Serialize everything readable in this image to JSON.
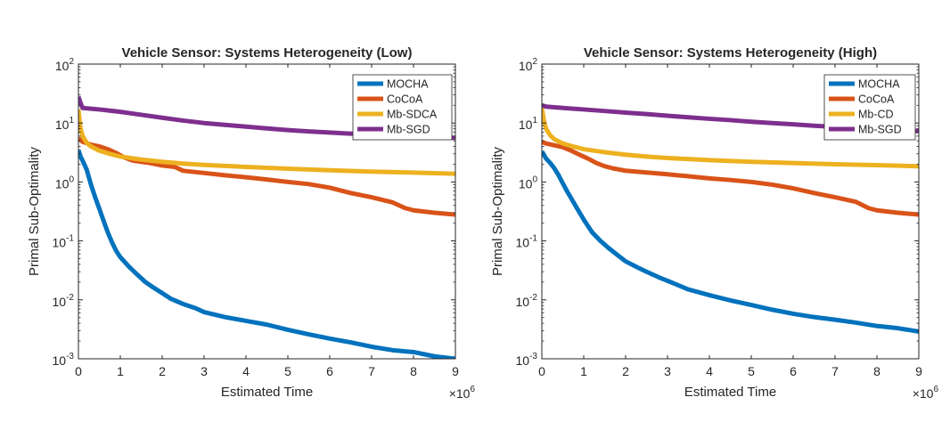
{
  "chart_data": [
    {
      "type": "line",
      "title": "Vehicle Sensor: Systems Heterogeneity (Low)",
      "xlabel": "Estimated Time",
      "ylabel": "Primal Sub-Optimality",
      "x_exponent_label": "×10",
      "x_exponent": "6",
      "y_scale": "log",
      "xlim": [
        0,
        9
      ],
      "ylim": [
        0.001,
        100
      ],
      "x_ticks": [
        "0",
        "1",
        "2",
        "3",
        "4",
        "5",
        "6",
        "7",
        "8",
        "9"
      ],
      "y_ticks": [
        {
          "base": "10",
          "exp": "-3"
        },
        {
          "base": "10",
          "exp": "-2"
        },
        {
          "base": "10",
          "exp": "-1"
        },
        {
          "base": "10",
          "exp": "0"
        },
        {
          "base": "10",
          "exp": "1"
        },
        {
          "base": "10",
          "exp": "2"
        }
      ],
      "legend_position": "top-right",
      "grid": false,
      "series": [
        {
          "name": "MOCHA",
          "color": "#0072BD",
          "x": [
            0,
            0.05,
            0.1,
            0.2,
            0.3,
            0.4,
            0.5,
            0.6,
            0.7,
            0.8,
            0.9,
            1.0,
            1.2,
            1.4,
            1.6,
            1.8,
            2.0,
            2.2,
            2.5,
            2.8,
            3.0,
            3.5,
            4.0,
            4.5,
            5.0,
            5.5,
            6.0,
            6.5,
            7.0,
            7.5,
            8.0,
            8.5,
            9.0
          ],
          "y": [
            3.5,
            2.7,
            2.3,
            1.6,
            0.9,
            0.55,
            0.35,
            0.22,
            0.14,
            0.095,
            0.068,
            0.053,
            0.037,
            0.027,
            0.02,
            0.016,
            0.013,
            0.0105,
            0.0085,
            0.0072,
            0.0062,
            0.0051,
            0.0044,
            0.0038,
            0.0031,
            0.0026,
            0.0022,
            0.0019,
            0.0016,
            0.0014,
            0.0013,
            0.0011,
            0.001
          ]
        },
        {
          "name": "CoCoA",
          "color": "#D95319",
          "x": [
            0,
            0.1,
            0.3,
            0.5,
            0.7,
            0.9,
            1.1,
            1.3,
            1.5,
            1.7,
            2.0,
            2.3,
            2.5,
            3.0,
            3.5,
            4.0,
            4.5,
            5.0,
            5.5,
            6.0,
            6.5,
            7.0,
            7.5,
            7.8,
            8.0,
            8.5,
            9.0
          ],
          "y": [
            5.5,
            4.8,
            4.3,
            4.0,
            3.6,
            3.1,
            2.6,
            2.3,
            2.2,
            2.1,
            1.9,
            1.8,
            1.55,
            1.42,
            1.3,
            1.2,
            1.1,
            1.0,
            0.92,
            0.8,
            0.65,
            0.55,
            0.45,
            0.36,
            0.33,
            0.3,
            0.28
          ]
        },
        {
          "name": "Mb-SDCA",
          "color": "#EDB120",
          "x": [
            0,
            0.05,
            0.1,
            0.2,
            0.3,
            0.5,
            0.75,
            1.0,
            1.5,
            2.0,
            2.5,
            3.0,
            4.0,
            5.0,
            6.0,
            7.0,
            8.0,
            9.0
          ],
          "y": [
            17,
            8,
            6,
            4.6,
            4.0,
            3.4,
            3.0,
            2.7,
            2.4,
            2.2,
            2.05,
            1.95,
            1.8,
            1.68,
            1.58,
            1.5,
            1.44,
            1.38
          ]
        },
        {
          "name": "Mb-SGD",
          "color": "#7E2F8E",
          "x": [
            0,
            0.05,
            0.1,
            0.3,
            0.5,
            1.0,
            1.5,
            2.0,
            2.5,
            3.0,
            3.5,
            4.0,
            4.5,
            5.0,
            5.5,
            6.0,
            6.5,
            7.0,
            7.5,
            8.0,
            8.5,
            9.0
          ],
          "y": [
            28,
            22,
            18,
            17.5,
            17,
            15.5,
            13.8,
            12.3,
            11.0,
            10.0,
            9.3,
            8.7,
            8.1,
            7.6,
            7.2,
            6.9,
            6.6,
            6.4,
            6.2,
            6.0,
            5.8,
            5.6
          ]
        }
      ]
    },
    {
      "type": "line",
      "title": "Vehicle Sensor: Systems Heterogeneity (High)",
      "xlabel": "Estimated Time",
      "ylabel": "Primal Sub-Optimality",
      "x_exponent_label": "×10",
      "x_exponent": "6",
      "y_scale": "log",
      "xlim": [
        0,
        9
      ],
      "ylim": [
        0.001,
        100
      ],
      "x_ticks": [
        "0",
        "1",
        "2",
        "3",
        "4",
        "5",
        "6",
        "7",
        "8",
        "9"
      ],
      "y_ticks": [
        {
          "base": "10",
          "exp": "-3"
        },
        {
          "base": "10",
          "exp": "-2"
        },
        {
          "base": "10",
          "exp": "-1"
        },
        {
          "base": "10",
          "exp": "0"
        },
        {
          "base": "10",
          "exp": "1"
        },
        {
          "base": "10",
          "exp": "2"
        }
      ],
      "legend_position": "top-right",
      "grid": false,
      "series": [
        {
          "name": "MOCHA",
          "color": "#0072BD",
          "x": [
            0,
            0.05,
            0.1,
            0.2,
            0.3,
            0.4,
            0.5,
            0.6,
            0.8,
            1.0,
            1.2,
            1.4,
            1.6,
            1.8,
            2.0,
            2.3,
            2.5,
            2.8,
            3.0,
            3.5,
            4.0,
            4.5,
            5.0,
            5.5,
            6.0,
            6.5,
            7.0,
            7.5,
            8.0,
            8.5,
            9.0
          ],
          "y": [
            3.3,
            2.9,
            2.5,
            2.1,
            1.7,
            1.3,
            0.95,
            0.7,
            0.4,
            0.23,
            0.14,
            0.1,
            0.075,
            0.058,
            0.045,
            0.035,
            0.03,
            0.024,
            0.021,
            0.015,
            0.012,
            0.0098,
            0.0082,
            0.0068,
            0.0058,
            0.0051,
            0.0046,
            0.0041,
            0.0036,
            0.0033,
            0.0029
          ]
        },
        {
          "name": "CoCoA",
          "color": "#D95319",
          "x": [
            0,
            0.1,
            0.3,
            0.5,
            0.7,
            0.9,
            1.1,
            1.3,
            1.5,
            1.7,
            2.0,
            2.5,
            3.0,
            3.5,
            4.0,
            4.5,
            5.0,
            5.5,
            6.0,
            6.5,
            7.0,
            7.5,
            7.8,
            8.0,
            8.5,
            9.0
          ],
          "y": [
            4.8,
            4.5,
            4.2,
            3.9,
            3.4,
            2.9,
            2.5,
            2.1,
            1.85,
            1.7,
            1.55,
            1.45,
            1.35,
            1.25,
            1.15,
            1.08,
            1.0,
            0.9,
            0.78,
            0.65,
            0.55,
            0.46,
            0.36,
            0.33,
            0.3,
            0.28
          ]
        },
        {
          "name": "Mb-CD",
          "color": "#EDB120",
          "x": [
            0,
            0.05,
            0.1,
            0.2,
            0.3,
            0.5,
            0.75,
            1.0,
            1.5,
            2.0,
            2.5,
            3.0,
            4.0,
            5.0,
            6.0,
            7.0,
            8.0,
            9.0
          ],
          "y": [
            18,
            11,
            8,
            6.2,
            5.3,
            4.5,
            4.0,
            3.6,
            3.2,
            2.9,
            2.7,
            2.55,
            2.35,
            2.2,
            2.1,
            2.0,
            1.93,
            1.85
          ]
        },
        {
          "name": "Mb-SGD",
          "color": "#7E2F8E",
          "x": [
            0,
            0.05,
            0.1,
            0.3,
            0.5,
            1.0,
            1.5,
            2.0,
            2.5,
            3.0,
            3.5,
            4.0,
            4.5,
            5.0,
            5.5,
            6.0,
            6.5,
            7.0,
            7.5,
            8.0,
            8.5,
            9.0
          ],
          "y": [
            20,
            19.5,
            19,
            18.5,
            18,
            17,
            16,
            15,
            14.2,
            13.3,
            12.5,
            11.8,
            11.2,
            10.5,
            10.0,
            9.5,
            9.0,
            8.6,
            8.2,
            7.9,
            7.6,
            7.3
          ]
        }
      ]
    }
  ]
}
